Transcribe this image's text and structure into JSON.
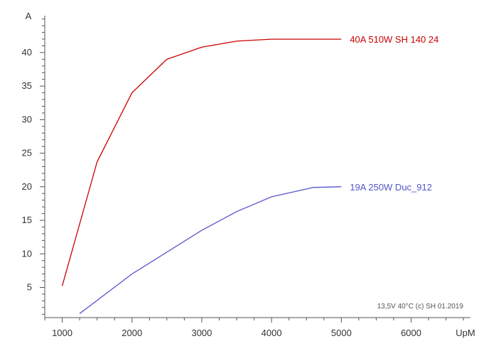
{
  "chart_data": {
    "type": "line",
    "xlabel": "UpM",
    "ylabel": "A",
    "xlim": [
      750,
      6850
    ],
    "ylim": [
      0.5,
      45.5
    ],
    "x_ticks": [
      1000,
      2000,
      3000,
      4000,
      5000,
      6000
    ],
    "x_minor_step": 250,
    "y_ticks": [
      5,
      10,
      15,
      20,
      25,
      30,
      35,
      40
    ],
    "y_minor_step": 1,
    "grid": false,
    "series": [
      {
        "name": "40A  510W  SH 140 24",
        "color": "#cc0000",
        "x": [
          1000,
          1500,
          2000,
          2500,
          3000,
          3500,
          4000,
          4500,
          5000
        ],
        "y": [
          5.2,
          23.7,
          34.0,
          39.0,
          40.8,
          41.7,
          42.0,
          42.0,
          42.0
        ]
      },
      {
        "name": "19A  250W  Duc_912",
        "color": "#5555cc",
        "x": [
          1250,
          2000,
          3000,
          3500,
          4000,
          4600,
          5000
        ],
        "y": [
          1.1,
          7.0,
          13.5,
          16.3,
          18.5,
          19.9,
          20.0
        ]
      }
    ],
    "annotation": "13,5V   40°C   (c) SH 01.2019"
  }
}
